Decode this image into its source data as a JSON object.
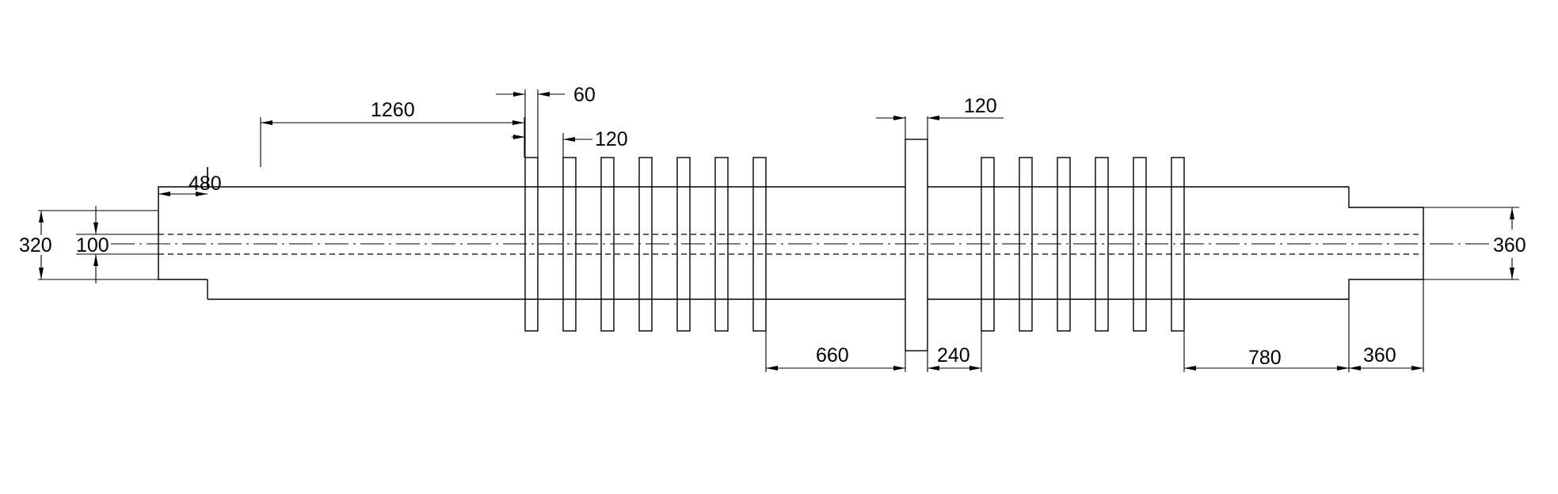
{
  "drawing": {
    "dimensions": {
      "d_320": "320",
      "d_100": "100",
      "d_480": "480",
      "d_1260": "1260",
      "d_60": "60",
      "d_120_fin": "120",
      "d_120_disc": "120",
      "d_660": "660",
      "d_240": "240",
      "d_780": "780",
      "d_360_len": "360",
      "d_360_dia": "360"
    }
  }
}
